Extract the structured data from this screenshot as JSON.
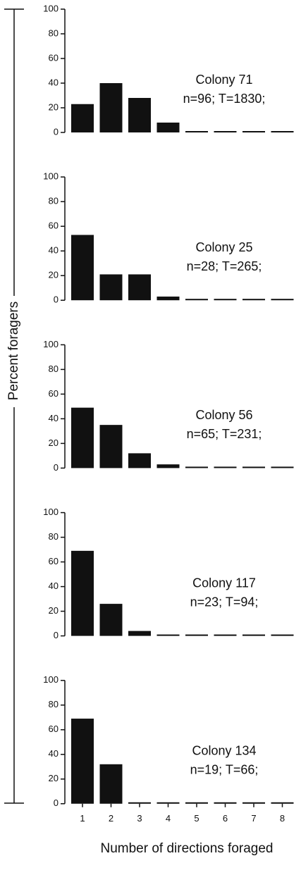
{
  "chart_data": {
    "type": "bar",
    "ylabel": "Percent foragers",
    "xlabel": "Number of directions foraged",
    "categories": [
      "1",
      "2",
      "3",
      "4",
      "5",
      "6",
      "7",
      "8"
    ],
    "ylim": [
      0,
      100
    ],
    "yticks": [
      0,
      20,
      40,
      60,
      80,
      100
    ],
    "color": "#111111",
    "panels": [
      {
        "title": "Colony 71",
        "subtitle": "n=96; T=1830;",
        "values": [
          23,
          40,
          28,
          8,
          0,
          1,
          0,
          0
        ]
      },
      {
        "title": "Colony 25",
        "subtitle": "n=28; T=265;",
        "values": [
          53,
          21,
          21,
          3,
          0,
          0,
          0,
          0
        ]
      },
      {
        "title": "Colony 56",
        "subtitle": "n=65; T=231;",
        "values": [
          49,
          35,
          12,
          3,
          0,
          0,
          0,
          0
        ]
      },
      {
        "title": "Colony 117",
        "subtitle": "n=23; T=94;",
        "values": [
          69,
          26,
          4,
          0,
          0,
          0,
          0,
          0
        ]
      },
      {
        "title": "Colony 134",
        "subtitle": "n=19; T=66;",
        "values": [
          69,
          32,
          0,
          0,
          0,
          0,
          0,
          0
        ]
      }
    ]
  }
}
